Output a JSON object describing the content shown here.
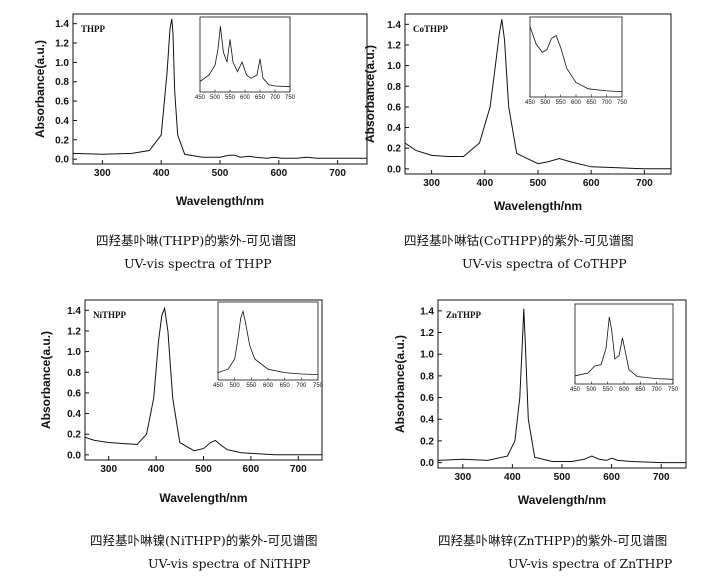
{
  "chart_data": [
    {
      "type": "line",
      "label": "THPP",
      "xlabel": "Wavelength/nm",
      "ylabel": "Absorbance(a.u.)",
      "xlim": [
        250,
        750
      ],
      "ylim": [
        -0.05,
        1.5
      ],
      "xticks": [
        300,
        400,
        500,
        600,
        700
      ],
      "yticks": [
        0.0,
        0.2,
        0.4,
        0.6,
        0.8,
        1.0,
        1.2,
        1.4
      ],
      "series": [
        {
          "x": [
            250,
            300,
            350,
            380,
            400,
            410,
            415,
            418,
            420,
            423,
            428,
            440,
            470,
            500,
            515,
            525,
            535,
            548,
            560,
            580,
            592,
            605,
            630,
            648,
            665,
            700,
            750
          ],
          "y": [
            0.06,
            0.05,
            0.06,
            0.09,
            0.25,
            0.9,
            1.35,
            1.45,
            1.3,
            0.7,
            0.25,
            0.05,
            0.02,
            0.02,
            0.04,
            0.04,
            0.02,
            0.03,
            0.02,
            0.01,
            0.02,
            0.01,
            0.01,
            0.02,
            0.01,
            0.01,
            0.01
          ]
        }
      ],
      "inset": {
        "xlim": [
          450,
          750
        ],
        "xticks": [
          450,
          500,
          550,
          600,
          650,
          700,
          750
        ],
        "series": [
          {
            "x": [
              450,
              480,
              500,
              510,
              518,
              528,
              540,
              550,
              560,
              575,
              590,
              605,
              620,
              640,
              650,
              660,
              680,
              700,
              750
            ],
            "y": [
              0.1,
              0.2,
              0.35,
              0.6,
              0.95,
              0.55,
              0.4,
              0.75,
              0.4,
              0.25,
              0.4,
              0.2,
              0.15,
              0.2,
              0.45,
              0.15,
              0.05,
              0.03,
              0.02
            ]
          }
        ]
      }
    },
    {
      "type": "line",
      "label": "CoTHPP",
      "xlabel": "Wavelength/nm",
      "ylabel": "Absorbance(a.u.)",
      "xlim": [
        250,
        750
      ],
      "ylim": [
        -0.05,
        1.5
      ],
      "xticks": [
        300,
        400,
        500,
        600,
        700
      ],
      "yticks": [
        0.0,
        0.2,
        0.4,
        0.6,
        0.8,
        1.0,
        1.2,
        1.4
      ],
      "series": [
        {
          "x": [
            250,
            270,
            300,
            330,
            360,
            390,
            410,
            420,
            427,
            432,
            437,
            445,
            460,
            500,
            520,
            540,
            560,
            600,
            650,
            700,
            750
          ],
          "y": [
            0.25,
            0.18,
            0.13,
            0.12,
            0.12,
            0.25,
            0.6,
            1.0,
            1.3,
            1.45,
            1.25,
            0.6,
            0.15,
            0.05,
            0.07,
            0.1,
            0.07,
            0.02,
            0.01,
            0.0,
            0.0
          ]
        }
      ],
      "inset": {
        "xlim": [
          450,
          750
        ],
        "xticks": [
          450,
          500,
          550,
          600,
          650,
          700,
          750
        ],
        "series": [
          {
            "x": [
              450,
              470,
              490,
              505,
              520,
              535,
              550,
              570,
              600,
              640,
              700,
              750
            ],
            "y": [
              0.95,
              0.7,
              0.58,
              0.62,
              0.78,
              0.82,
              0.65,
              0.35,
              0.15,
              0.06,
              0.03,
              0.02
            ]
          }
        ]
      }
    },
    {
      "type": "line",
      "label": "NiTHPP",
      "xlabel": "Wavelength/nm",
      "ylabel": "Absorbance(a.u.)",
      "xlim": [
        250,
        750
      ],
      "ylim": [
        -0.05,
        1.5
      ],
      "xticks": [
        300,
        400,
        500,
        600,
        700
      ],
      "yticks": [
        0.0,
        0.2,
        0.4,
        0.6,
        0.8,
        1.0,
        1.2,
        1.4
      ],
      "series": [
        {
          "x": [
            250,
            270,
            300,
            330,
            360,
            380,
            395,
            405,
            412,
            418,
            425,
            435,
            450,
            480,
            500,
            515,
            525,
            535,
            550,
            580,
            650,
            750
          ],
          "y": [
            0.17,
            0.14,
            0.12,
            0.11,
            0.1,
            0.2,
            0.55,
            1.1,
            1.35,
            1.42,
            1.2,
            0.55,
            0.12,
            0.04,
            0.06,
            0.12,
            0.14,
            0.1,
            0.05,
            0.02,
            0.0,
            0.0
          ]
        }
      ],
      "inset": {
        "xlim": [
          450,
          750
        ],
        "xticks": [
          450,
          500,
          550,
          600,
          650,
          700,
          750
        ],
        "series": [
          {
            "x": [
              450,
              480,
              500,
              510,
              518,
              525,
              532,
              545,
              560,
              600,
              650,
              700,
              750
            ],
            "y": [
              0.05,
              0.1,
              0.25,
              0.55,
              0.85,
              0.95,
              0.8,
              0.45,
              0.25,
              0.1,
              0.05,
              0.03,
              0.02
            ]
          }
        ]
      }
    },
    {
      "type": "line",
      "label": "ZnTHPP",
      "xlabel": "Wavelength/nm",
      "ylabel": "Absorbance(a.u.)",
      "xlim": [
        250,
        750
      ],
      "ylim": [
        -0.05,
        1.5
      ],
      "xticks": [
        300,
        400,
        500,
        600,
        700
      ],
      "yticks": [
        0.0,
        0.2,
        0.4,
        0.6,
        0.8,
        1.0,
        1.2,
        1.4
      ],
      "series": [
        {
          "x": [
            250,
            300,
            350,
            390,
            405,
            415,
            420,
            423,
            426,
            432,
            445,
            480,
            520,
            545,
            560,
            575,
            590,
            600,
            612,
            640,
            700,
            750
          ],
          "y": [
            0.02,
            0.03,
            0.02,
            0.06,
            0.2,
            0.6,
            1.1,
            1.42,
            1.1,
            0.4,
            0.05,
            0.01,
            0.01,
            0.03,
            0.06,
            0.03,
            0.02,
            0.04,
            0.02,
            0.01,
            0.0,
            0.0
          ]
        }
      ],
      "inset": {
        "xlim": [
          450,
          750
        ],
        "xticks": [
          450,
          500,
          550,
          600,
          650,
          700,
          750
        ],
        "series": [
          {
            "x": [
              450,
              490,
              510,
              530,
              545,
              555,
              562,
              572,
              585,
              595,
              602,
              615,
              640,
              700,
              750
            ],
            "y": [
              0.06,
              0.1,
              0.2,
              0.22,
              0.45,
              0.9,
              0.72,
              0.3,
              0.35,
              0.6,
              0.45,
              0.15,
              0.05,
              0.02,
              0.01
            ]
          }
        ]
      }
    }
  ],
  "captions": [
    {
      "cn": "四羟基卟啉(THPP)的紫外-可见谱图",
      "en": "UV-vis spectra of THPP"
    },
    {
      "cn": "四羟基卟啉钴(CoTHPP)的紫外-可见谱图",
      "en": "UV-vis spectra of CoTHPP"
    },
    {
      "cn": "四羟基卟啉镍(NiTHPP)的紫外-可见谱图",
      "en": "UV-vis spectra of NiTHPP"
    },
    {
      "cn": "四羟基卟啉锌(ZnTHPP)的紫外-可见谱图",
      "en": "UV-vis spectra of ZnTHPP"
    }
  ]
}
